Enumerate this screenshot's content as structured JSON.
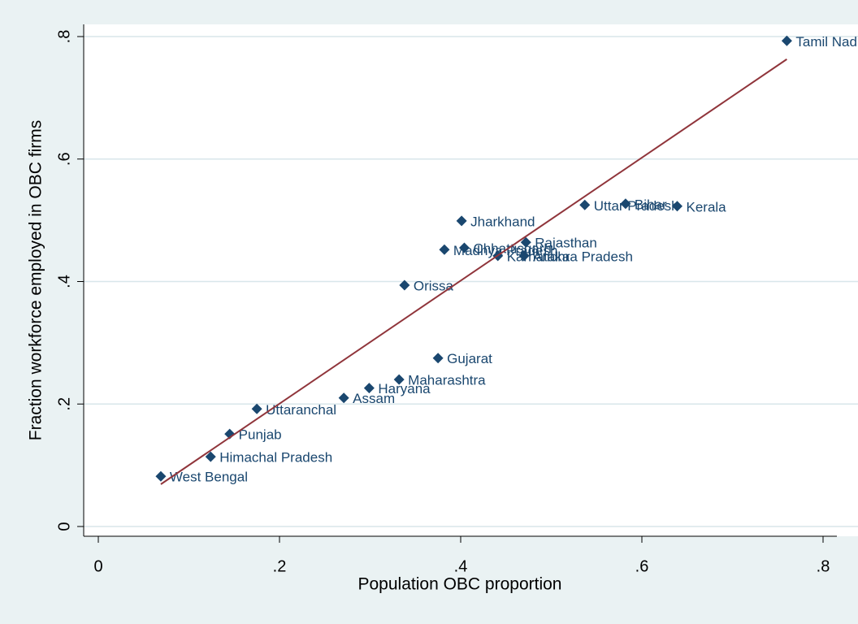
{
  "chart_data": {
    "type": "scatter",
    "x_label": "Population OBC proportion",
    "y_label": "Fraction workforce employed in OBC firms",
    "point_labels": [
      "Tamil Nadu",
      "Kerala",
      "Bihar",
      "Uttar Pradesh",
      "Jharkhand",
      "Rajasthan",
      "Chhattisgarh",
      "Madhya Pradesh",
      "Karnataka",
      "Andhra Pradesh",
      "Orissa",
      "Gujarat",
      "Maharashtra",
      "Haryana",
      "Assam",
      "Uttaranchal",
      "Punjab",
      "Himachal Pradesh",
      "West Bengal"
    ],
    "x": [
      0.76,
      0.639,
      0.582,
      0.537,
      0.401,
      0.472,
      0.404,
      0.382,
      0.441,
      0.47,
      0.338,
      0.375,
      0.332,
      0.299,
      0.271,
      0.175,
      0.145,
      0.124,
      0.069
    ],
    "values": [
      0.793,
      0.523,
      0.527,
      0.525,
      0.499,
      0.464,
      0.455,
      0.452,
      0.442,
      0.442,
      0.394,
      0.275,
      0.24,
      0.226,
      0.21,
      0.192,
      0.151,
      0.114,
      0.082
    ],
    "color": "#1a476f",
    "fit_line": {
      "x": [
        0.069,
        0.76
      ],
      "values": [
        0.069,
        0.763
      ],
      "color": "#90353b"
    },
    "xlim": [
      0,
      0.8
    ],
    "ylim": [
      0,
      0.8
    ],
    "xticks": [
      0,
      {
        "value": 0.2,
        "label": ".2"
      },
      {
        "value": 0.4,
        "label": ".4"
      },
      {
        "value": 0.6,
        "label": ".6"
      },
      {
        "value": 0.8,
        "label": ".8"
      }
    ],
    "yticks": [
      0,
      {
        "value": 0.2,
        "label": ".2"
      },
      {
        "value": 0.4,
        "label": ".4"
      },
      {
        "value": 0.6,
        "label": ".6"
      },
      {
        "value": 0.8,
        "label": ".8"
      }
    ],
    "grid": true
  }
}
